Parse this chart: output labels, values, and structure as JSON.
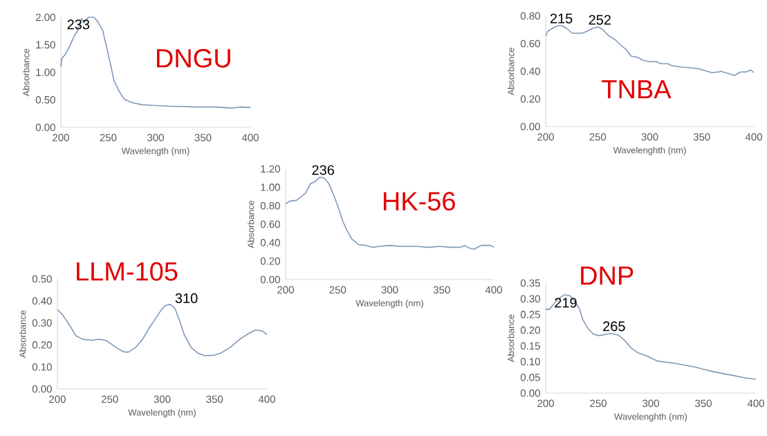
{
  "chart_data": [
    {
      "type": "line",
      "title": "DNGU",
      "xlabel": "Wavelength (nm)",
      "ylabel": "Absorbance",
      "color": "#7f99b8",
      "x": [
        200,
        201,
        204,
        208,
        215,
        217,
        222,
        224.5,
        229,
        235,
        239,
        244,
        248,
        253,
        256,
        262,
        267,
        275,
        286,
        297,
        308,
        318,
        330,
        341,
        352,
        363,
        372,
        380,
        390,
        400
      ],
      "values": [
        1.1,
        1.25,
        1.31,
        1.43,
        1.69,
        1.73,
        1.98,
        1.9,
        2.0,
        2.0,
        1.92,
        1.77,
        1.48,
        1.1,
        0.85,
        0.64,
        0.51,
        0.45,
        0.41,
        0.4,
        0.39,
        0.38,
        0.38,
        0.37,
        0.37,
        0.37,
        0.36,
        0.35,
        0.37,
        0.36
      ],
      "xlim": [
        200,
        400
      ],
      "ylim": [
        0,
        2
      ],
      "xticks": [
        200,
        250,
        300,
        350,
        400
      ],
      "yticks": [
        {
          "value": 0,
          "label": "0.00"
        },
        {
          "value": 0.5,
          "label": "0.50"
        },
        {
          "value": 1,
          "label": "1.00"
        },
        {
          "value": 1.5,
          "label": "1.50"
        },
        {
          "value": 2,
          "label": "2.00"
        }
      ],
      "annotations": [
        {
          "text": "233",
          "x": 233,
          "y": 2.0
        }
      ]
    },
    {
      "type": "line",
      "title": "TNBA",
      "xlabel": "Wavelenghth (nm)",
      "ylabel": "Absorbance",
      "color": "#7f99b8",
      "x": [
        200,
        202,
        206.6,
        212,
        215.5,
        220,
        225.5,
        229,
        235,
        240,
        245,
        251,
        255,
        260,
        266.4,
        272,
        277.5,
        282,
        288.6,
        293,
        299.7,
        306,
        310.7,
        317,
        321.8,
        330.7,
        339.5,
        346,
        353,
        359.5,
        366,
        368,
        375,
        381.5,
        387,
        392.7,
        397,
        400
      ],
      "values": [
        0.656,
        0.69,
        0.71,
        0.73,
        0.73,
        0.71,
        0.675,
        0.675,
        0.675,
        0.69,
        0.71,
        0.72,
        0.7,
        0.66,
        0.63,
        0.59,
        0.555,
        0.51,
        0.5,
        0.48,
        0.47,
        0.47,
        0.455,
        0.455,
        0.44,
        0.43,
        0.425,
        0.42,
        0.405,
        0.39,
        0.395,
        0.4,
        0.385,
        0.37,
        0.395,
        0.395,
        0.41,
        0.39
      ],
      "xlim": [
        200,
        400
      ],
      "ylim": [
        0,
        0.8
      ],
      "xticks": [
        200,
        250,
        300,
        350,
        400
      ],
      "yticks": [
        {
          "value": 0,
          "label": "0.00"
        },
        {
          "value": 0.2,
          "label": "0.20"
        },
        {
          "value": 0.4,
          "label": "0.40"
        },
        {
          "value": 0.6,
          "label": "0.60"
        },
        {
          "value": 0.8,
          "label": "0.80"
        }
      ],
      "annotations": [
        {
          "text": "215",
          "x": 215,
          "y": 0.73
        },
        {
          "text": "252",
          "x": 252,
          "y": 0.72
        }
      ]
    },
    {
      "type": "line",
      "title": "HK-56",
      "xlabel": "Wavelength (nm)",
      "ylabel": "Absorbance",
      "color": "#7f99b8",
      "x": [
        200,
        204,
        210.6,
        215,
        219.4,
        223.8,
        228,
        232.7,
        237,
        241.5,
        246,
        250,
        255,
        259,
        263.6,
        270,
        277,
        283.7,
        290,
        299.6,
        310.6,
        326,
        337,
        348,
        359,
        368,
        372,
        376.8,
        381,
        388,
        397,
        400
      ],
      "values": [
        0.82,
        0.85,
        0.86,
        0.9,
        0.94,
        1.04,
        1.06,
        1.11,
        1.1,
        1.04,
        0.92,
        0.8,
        0.63,
        0.53,
        0.44,
        0.38,
        0.37,
        0.35,
        0.36,
        0.37,
        0.36,
        0.36,
        0.35,
        0.36,
        0.35,
        0.35,
        0.37,
        0.34,
        0.33,
        0.37,
        0.37,
        0.35
      ],
      "xlim": [
        200,
        400
      ],
      "ylim": [
        0,
        1.2
      ],
      "xticks": [
        200,
        250,
        300,
        350,
        400
      ],
      "yticks": [
        {
          "value": 0,
          "label": "0.00"
        },
        {
          "value": 0.2,
          "label": "0.20"
        },
        {
          "value": 0.4,
          "label": "0.40"
        },
        {
          "value": 0.6,
          "label": "0.60"
        },
        {
          "value": 0.8,
          "label": "0.80"
        },
        {
          "value": 1,
          "label": "1.00"
        },
        {
          "value": 1.2,
          "label": "1.20"
        }
      ],
      "annotations": [
        {
          "text": "236",
          "x": 236,
          "y": 1.11
        }
      ]
    },
    {
      "type": "line",
      "title": "LLM-105",
      "xlabel": "Wavelength (nm)",
      "ylabel": "Absorbance",
      "color": "#7f99b8",
      "x": [
        200,
        204.4,
        208.8,
        213,
        217.6,
        224,
        233,
        239.6,
        246,
        252.7,
        259,
        263.7,
        268,
        274.7,
        281.3,
        287.9,
        294.5,
        299,
        303,
        307.7,
        312,
        316.5,
        321,
        327.5,
        334,
        340.7,
        349.5,
        356,
        365,
        374,
        383,
        389,
        395.6,
        400
      ],
      "values": [
        0.361,
        0.34,
        0.31,
        0.279,
        0.242,
        0.226,
        0.221,
        0.226,
        0.221,
        0.2,
        0.179,
        0.168,
        0.168,
        0.189,
        0.226,
        0.279,
        0.326,
        0.358,
        0.379,
        0.384,
        0.368,
        0.311,
        0.247,
        0.189,
        0.163,
        0.151,
        0.153,
        0.163,
        0.189,
        0.226,
        0.253,
        0.268,
        0.263,
        0.247
      ],
      "xlim": [
        200,
        400
      ],
      "ylim": [
        0,
        0.5
      ],
      "xticks": [
        200,
        250,
        300,
        350,
        400
      ],
      "yticks": [
        {
          "value": 0,
          "label": "0.00"
        },
        {
          "value": 0.1,
          "label": "0.10"
        },
        {
          "value": 0.2,
          "label": "0.20"
        },
        {
          "value": 0.3,
          "label": "0.30"
        },
        {
          "value": 0.4,
          "label": "0.40"
        },
        {
          "value": 0.5,
          "label": "0.50"
        }
      ],
      "annotations": [
        {
          "text": "310",
          "x": 310,
          "y": 0.38
        }
      ]
    },
    {
      "type": "line",
      "title": "DNP",
      "xlabel": "Wavelenghth (nm)",
      "ylabel": "Absorbance",
      "color": "#7f99b8",
      "x": [
        200,
        203.3,
        207.8,
        213,
        217.7,
        223,
        227.7,
        232,
        235.4,
        239.9,
        245.4,
        251,
        257.6,
        262,
        268.7,
        275.3,
        282,
        288.6,
        297.5,
        306.3,
        324,
        341.7,
        359.5,
        377,
        390.5,
        400
      ],
      "values": [
        0.266,
        0.266,
        0.284,
        0.302,
        0.313,
        0.31,
        0.291,
        0.269,
        0.233,
        0.207,
        0.187,
        0.183,
        0.187,
        0.19,
        0.185,
        0.167,
        0.141,
        0.127,
        0.116,
        0.102,
        0.094,
        0.083,
        0.068,
        0.057,
        0.048,
        0.044
      ],
      "xlim": [
        200,
        400
      ],
      "ylim": [
        0,
        0.35
      ],
      "xticks": [
        200,
        250,
        300,
        350,
        400
      ],
      "yticks": [
        {
          "value": 0,
          "label": "0.00"
        },
        {
          "value": 0.05,
          "label": "0.05"
        },
        {
          "value": 0.1,
          "label": "0.10"
        },
        {
          "value": 0.15,
          "label": "0.15"
        },
        {
          "value": 0.2,
          "label": "0.20"
        },
        {
          "value": 0.25,
          "label": "0.25"
        },
        {
          "value": 0.3,
          "label": "0.30"
        },
        {
          "value": 0.35,
          "label": "0.35"
        }
      ],
      "annotations": [
        {
          "text": "219",
          "x": 219,
          "y": 0.31
        },
        {
          "text": "265",
          "x": 265,
          "y": 0.19
        }
      ]
    }
  ]
}
